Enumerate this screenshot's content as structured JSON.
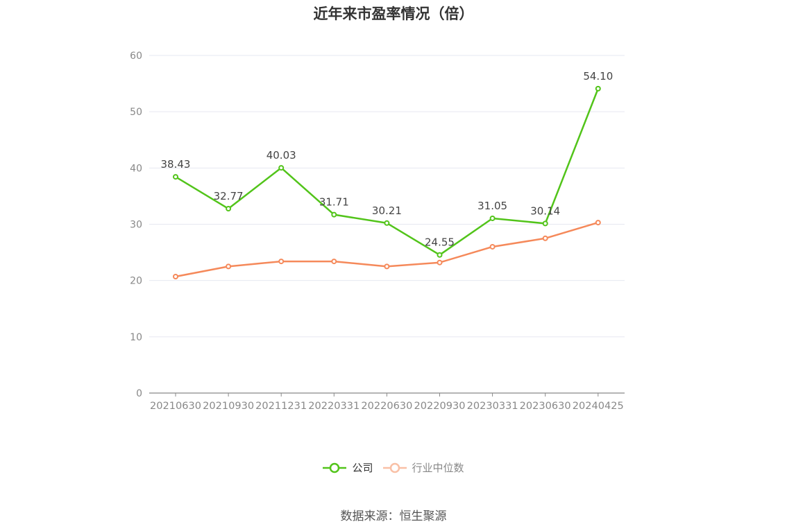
{
  "chart_data": {
    "type": "line",
    "title": "近年来市盈率情况（倍）",
    "categories": [
      "20210630",
      "20210930",
      "20211231",
      "20220331",
      "20220630",
      "20220930",
      "20230331",
      "20230630",
      "20240425"
    ],
    "ylim": [
      0,
      60
    ],
    "yticks": [
      0,
      10,
      20,
      30,
      40,
      50,
      60
    ],
    "grid": true,
    "legend_position": "bottom",
    "series": [
      {
        "name": "公司",
        "color": "#52c41a",
        "values": [
          38.43,
          32.77,
          40.03,
          31.71,
          30.21,
          24.55,
          31.05,
          30.14,
          54.1
        ],
        "labels": [
          "38.43",
          "32.77",
          "40.03",
          "31.71",
          "30.21",
          "24.55",
          "31.05",
          "30.14",
          "54.10"
        ]
      },
      {
        "name": "行业中位数",
        "color": "#f5895a",
        "values": [
          20.7,
          22.5,
          23.4,
          23.4,
          22.5,
          23.2,
          26.0,
          27.5,
          30.3
        ]
      }
    ]
  },
  "source": "数据来源：恒生聚源"
}
